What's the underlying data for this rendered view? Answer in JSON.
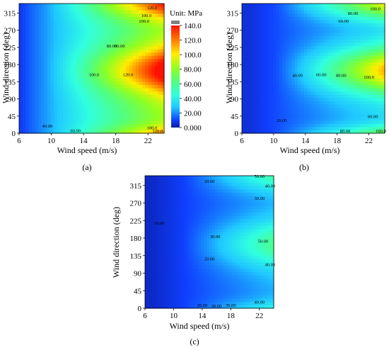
{
  "chart_data": [
    {
      "type": "heatmap",
      "panel_label": "(a)",
      "xlabel": "Wind speed (m/s)",
      "ylabel": "Wind direction (deg)",
      "xlim": [
        6,
        24
      ],
      "ylim": [
        0,
        340
      ],
      "x_ticks": [
        "6",
        "10",
        "14",
        "18",
        "22"
      ],
      "y_ticks": [
        "0",
        "45",
        "90",
        "135",
        "180",
        "225",
        "270",
        "315"
      ],
      "colormap_range": [
        0,
        140
      ],
      "contour_labels": [
        "40.00",
        "60.00",
        "80.00",
        "100.0",
        "120.0",
        "100.0",
        "120.0",
        "100.0",
        "80.00",
        "120.0",
        "100.0"
      ]
    },
    {
      "type": "heatmap",
      "panel_label": "(b)",
      "xlabel": "Wind speed (m/s)",
      "ylabel": "Wind direction (deg)",
      "xlim": [
        6,
        24
      ],
      "ylim": [
        0,
        340
      ],
      "x_ticks": [
        "6",
        "10",
        "14",
        "18",
        "22"
      ],
      "y_ticks": [
        "0",
        "45",
        "90",
        "135",
        "180",
        "225",
        "270",
        "315"
      ],
      "colormap_range": [
        0,
        140
      ],
      "contour_labels": [
        "20.00",
        "40.00",
        "60.00",
        "80.00",
        "100.0",
        "80.00",
        "60.00",
        "100.0",
        "80.00",
        "60.00",
        "100.0"
      ]
    },
    {
      "type": "heatmap",
      "panel_label": "(c)",
      "xlabel": "Wind speed (m/s)",
      "ylabel": "Wind direction (deg)",
      "xlim": [
        6,
        24
      ],
      "ylim": [
        0,
        340
      ],
      "x_ticks": [
        "6",
        "10",
        "14",
        "18",
        "22"
      ],
      "y_ticks": [
        "0",
        "45",
        "90",
        "135",
        "180",
        "225",
        "270",
        "315"
      ],
      "colormap_range": [
        0,
        140
      ],
      "contour_labels": [
        "10.00",
        "20.00",
        "30.00",
        "20.00",
        "50.00",
        "40.00",
        "30.00",
        "30.00",
        "50.00",
        "40.00",
        "20.00",
        "30.00",
        "40.00"
      ]
    }
  ],
  "colorbar": {
    "title": "Unit: MPa",
    "ticks": [
      "0.000",
      "20.00",
      "40.00",
      "60.00",
      "80.00",
      "100.0",
      "120.0",
      "140.0"
    ]
  }
}
